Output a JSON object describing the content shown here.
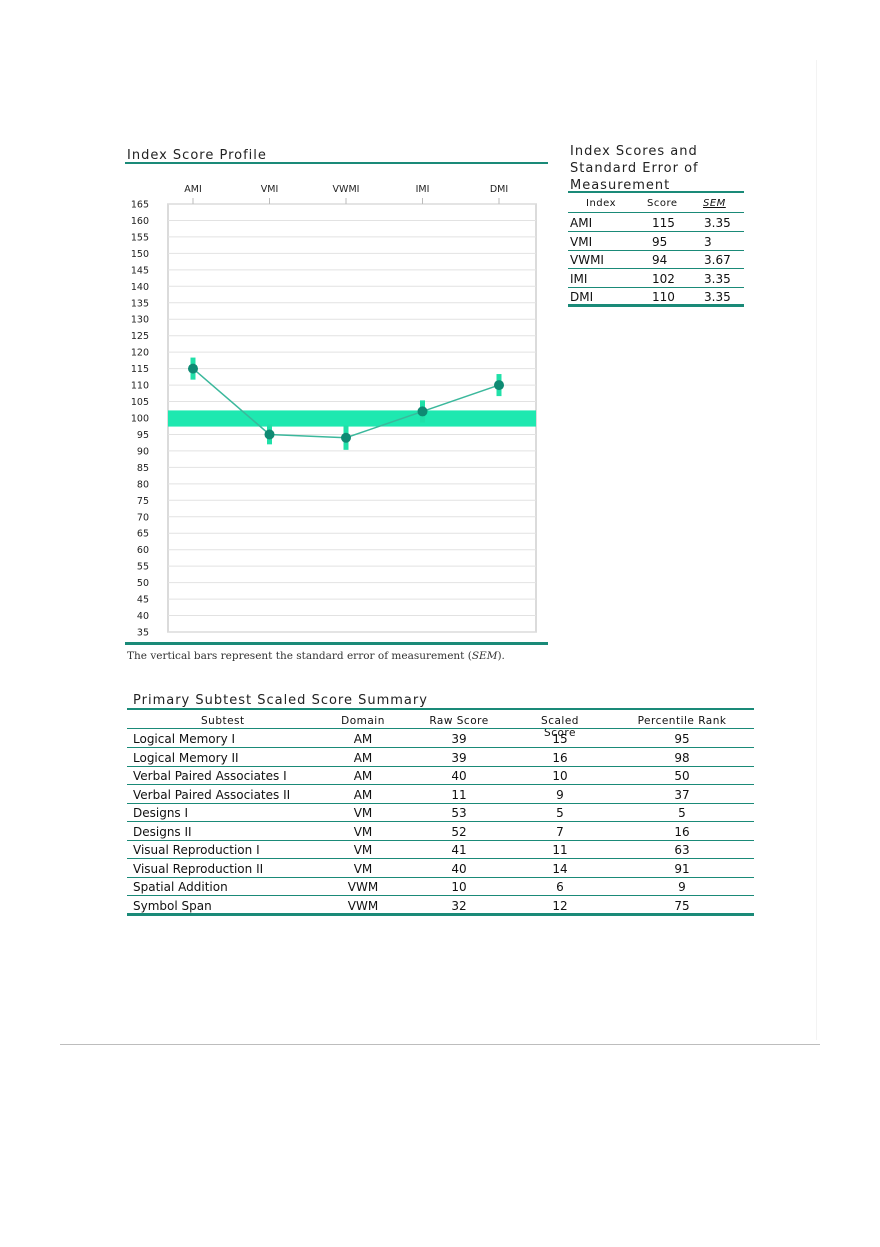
{
  "profile": {
    "title": "Index Score Profile",
    "caption_prefix": "The vertical bars represent the standard error of measurement (",
    "caption_em": "SEM",
    "caption_suffix": ")."
  },
  "chart_data": {
    "type": "line",
    "categories": [
      "AMI",
      "VMI",
      "VWMI",
      "IMI",
      "DMI"
    ],
    "values": [
      115,
      95,
      94,
      102,
      110
    ],
    "sem": [
      3.35,
      3,
      3.67,
      3.35,
      3.35
    ],
    "ylim": [
      35,
      165
    ],
    "yticks": [
      165,
      160,
      155,
      150,
      145,
      140,
      135,
      130,
      125,
      120,
      115,
      110,
      105,
      100,
      95,
      90,
      85,
      80,
      75,
      70,
      65,
      60,
      55,
      50,
      45,
      40,
      35
    ],
    "reference_band": [
      98,
      102
    ],
    "grid": true,
    "colors": {
      "line": "#3bb89c",
      "point": "#0f8a73",
      "bar": "#20e0a8",
      "band": "#1ee8b0",
      "grid": "#e2e2e2"
    }
  },
  "index_table": {
    "title_lines": [
      "Index Scores and",
      "Standard Error of",
      "Measurement"
    ],
    "headers": [
      "Index",
      "Score",
      "SEM"
    ],
    "rows": [
      [
        "AMI",
        "115",
        "3.35"
      ],
      [
        "VMI",
        "95",
        "3"
      ],
      [
        "VWMI",
        "94",
        "3.67"
      ],
      [
        "IMI",
        "102",
        "3.35"
      ],
      [
        "DMI",
        "110",
        "3.35"
      ]
    ]
  },
  "subtest_table": {
    "title": "Primary Subtest Scaled Score Summary",
    "headers": [
      "Subtest",
      "Domain",
      "Raw Score",
      "Scaled Score",
      "Percentile Rank"
    ],
    "rows": [
      [
        "Logical Memory I",
        "AM",
        "39",
        "15",
        "95"
      ],
      [
        "Logical Memory II",
        "AM",
        "39",
        "16",
        "98"
      ],
      [
        "Verbal Paired Associates I",
        "AM",
        "40",
        "10",
        "50"
      ],
      [
        "Verbal Paired Associates II",
        "AM",
        "11",
        "9",
        "37"
      ],
      [
        "Designs I",
        "VM",
        "53",
        "5",
        "5"
      ],
      [
        "Designs II",
        "VM",
        "52",
        "7",
        "16"
      ],
      [
        "Visual Reproduction I",
        "VM",
        "41",
        "11",
        "63"
      ],
      [
        "Visual Reproduction II",
        "VM",
        "40",
        "14",
        "91"
      ],
      [
        "Spatial Addition",
        "VWM",
        "10",
        "6",
        "9"
      ],
      [
        "Symbol Span",
        "VWM",
        "32",
        "12",
        "75"
      ]
    ]
  }
}
